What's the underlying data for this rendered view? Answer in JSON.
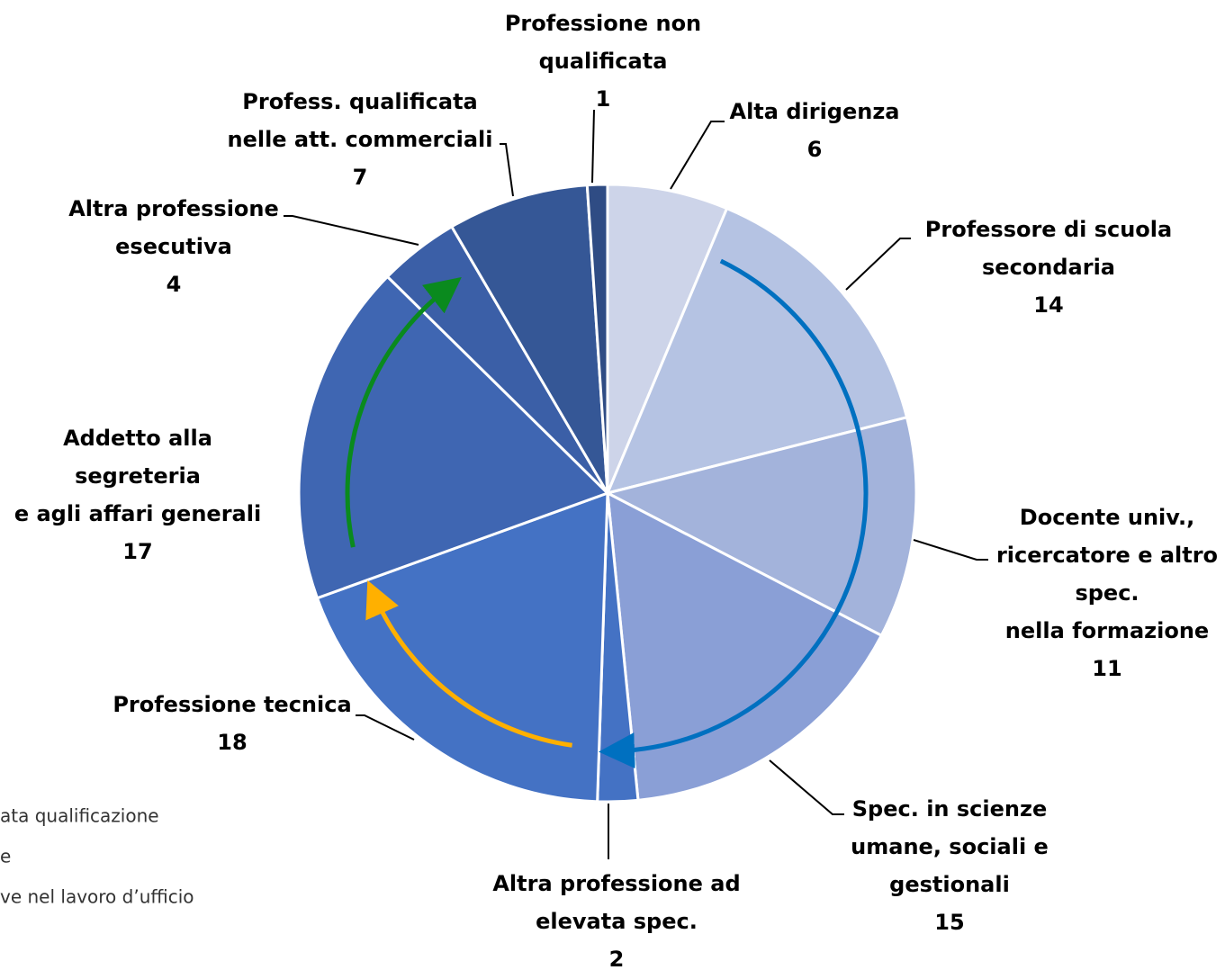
{
  "chart_data": {
    "type": "pie",
    "categories": [
      [
        "Alta dirigenza"
      ],
      [
        "Professore di scuola",
        "secondaria"
      ],
      [
        "Docente univ.,",
        "ricercatore e altro",
        "spec.",
        "nella formazione"
      ],
      [
        "Spec. in scienze",
        "umane, sociali e",
        "gestionali"
      ],
      [
        "Altra professione ad",
        "elevata spec."
      ],
      [
        "Professione tecnica"
      ],
      [
        "Addetto alla",
        "segreteria",
        "e agli affari generali"
      ],
      [
        "Altra professione",
        "esecutiva"
      ],
      [
        "Profess. qualificata",
        "nelle att. commerciali"
      ],
      [
        "Professione non",
        "qualificata"
      ]
    ],
    "values": [
      6,
      14,
      11,
      15,
      2,
      18,
      17,
      4,
      7,
      1
    ],
    "colors": [
      "#cdd4e9",
      "#b5c3e3",
      "#a3b3db",
      "#8a9fd6",
      "#4472c4",
      "#4472c4",
      "#3f66b2",
      "#3b5fa7",
      "#355796",
      "#2f4c84"
    ],
    "legend_fragments": [
      "ata qualificazione",
      "e",
      "ve nel lavoro d’ufficio"
    ]
  }
}
